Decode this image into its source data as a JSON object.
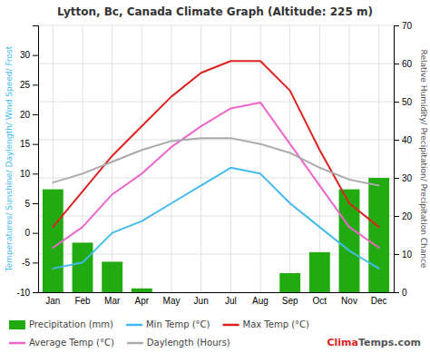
{
  "chart_data": {
    "type": "bar",
    "title": "Lytton, Bc, Canada Climate Graph (Altitude: 225 m)",
    "categories": [
      "Jan",
      "Feb",
      "Mar",
      "Apr",
      "May",
      "Jun",
      "Jul",
      "Aug",
      "Sep",
      "Oct",
      "Nov",
      "Dec"
    ],
    "series": [
      {
        "name": "Precipitation (mm)",
        "type": "bar",
        "axis": "y2",
        "color": "#22aa11",
        "values": [
          27,
          13,
          8,
          1,
          0,
          0,
          0,
          0,
          5,
          10.5,
          27,
          30
        ]
      },
      {
        "name": "Min Temp (°C)",
        "type": "line",
        "color": "#44bbee",
        "values": [
          -6,
          -5,
          0,
          2,
          5,
          8,
          11,
          10,
          5,
          1,
          -3,
          -6
        ]
      },
      {
        "name": "Max Temp (°C)",
        "type": "line",
        "color": "#dd2222",
        "values": [
          1,
          7,
          13,
          18,
          23,
          27,
          29,
          29,
          24,
          14,
          5,
          1
        ]
      },
      {
        "name": "Average Temp (°C)",
        "type": "line",
        "color": "#ee66cc",
        "values": [
          -2.5,
          1,
          6.5,
          10,
          14.5,
          18,
          21,
          22,
          15,
          8,
          1,
          -2.5
        ]
      },
      {
        "name": "Daylength (Hours)",
        "type": "line",
        "color": "#aaaaaa",
        "values": [
          8.5,
          10,
          12,
          14,
          15.5,
          16,
          16,
          15,
          13.5,
          11,
          9,
          8
        ]
      }
    ],
    "ylabel": "Temperatures/ Sunshine/ Daylength/ Wind Speed/ Frost",
    "y2label": "Relative Humidity/ Precipitation/ Precipitation Chance",
    "ylim": [
      -10,
      35
    ],
    "yticks": [
      -10,
      -5,
      0,
      5,
      10,
      15,
      20,
      25,
      30
    ],
    "y2lim": [
      0,
      70
    ],
    "y2ticks": [
      0,
      10,
      20,
      30,
      40,
      50,
      60,
      70
    ],
    "grid": true,
    "legend": "bottom",
    "annotations": [
      {
        "text": "Clima",
        "color": "#dd2222"
      },
      {
        "text": "Temps.com",
        "color": "#555555"
      }
    ]
  }
}
